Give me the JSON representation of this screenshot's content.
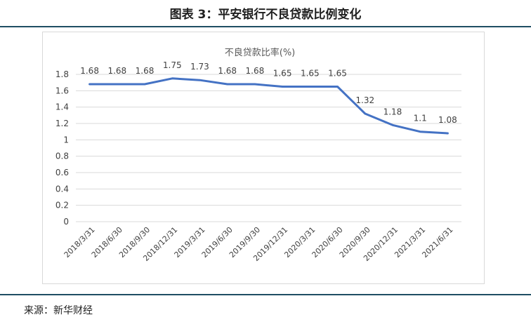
{
  "figure_title": "图表 3：平安银行不良贷款比例变化",
  "source": "来源：新华财经",
  "chart_data": {
    "type": "line",
    "title": "不良贷款比率(%)",
    "xlabel": "",
    "ylabel": "",
    "categories": [
      "2018/3/31",
      "2018/6/30",
      "2018/9/30",
      "2018/12/31",
      "2019/3/31",
      "2019/6/30",
      "2019/9/30",
      "2019/12/31",
      "2020/3/31",
      "2020/6/30",
      "2020/9/30",
      "2020/12/31",
      "2021/3/31",
      "2021/6/31"
    ],
    "series": [
      {
        "values": [
          1.68,
          1.68,
          1.68,
          1.75,
          1.73,
          1.68,
          1.68,
          1.65,
          1.65,
          1.65,
          1.32,
          1.18,
          1.1,
          1.08
        ]
      }
    ],
    "data_labels": [
      "1.68",
      "1.68",
      "1.68",
      "1.75",
      "1.73",
      "1.68",
      "1.68",
      "1.65",
      "1.65",
      "1.65",
      "1.32",
      "1.18",
      "1.1",
      "1.08"
    ],
    "ylim": [
      0,
      1.8
    ],
    "yticks": [
      0,
      0.2,
      0.4,
      0.6,
      0.8,
      1,
      1.2,
      1.4,
      1.6,
      1.8
    ],
    "grid": true,
    "legend": "none",
    "line_color": "#4472c4"
  }
}
